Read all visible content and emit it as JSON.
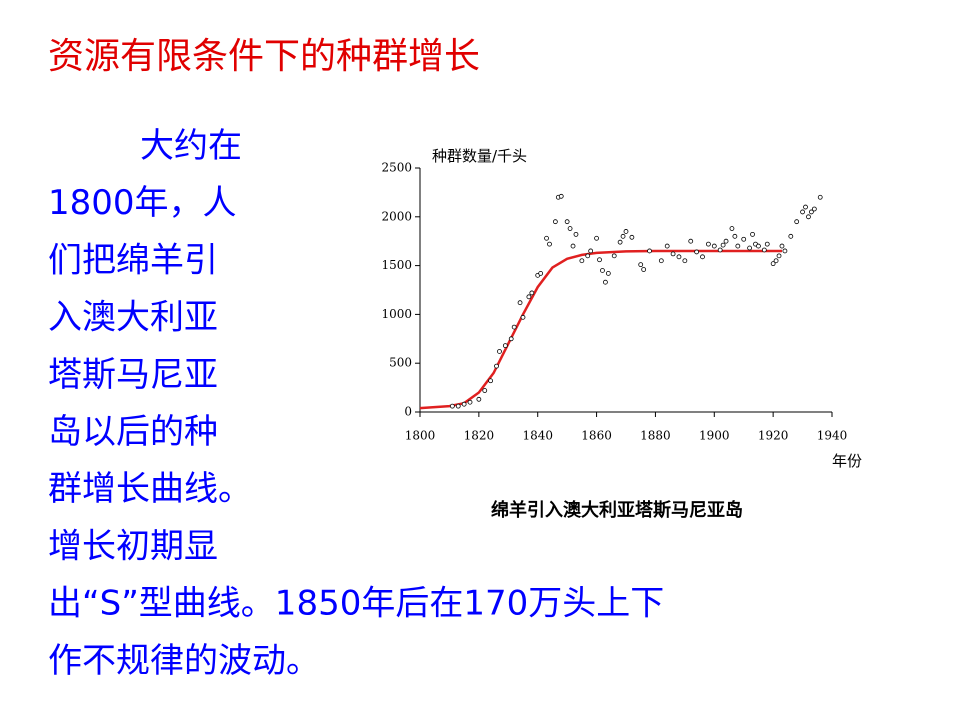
{
  "title": "资源有限条件下的种群增长",
  "body_lines": [
    "大约在",
    "1800年，人",
    "们把绵羊引",
    "入澳大利亚",
    "塔斯马尼亚",
    "岛以后的种",
    "群增长曲线。",
    "增长初期显",
    "出“S”型曲线。1850年后在170万头上下",
    "作不规律的波动。"
  ],
  "chart_data": {
    "type": "scatter",
    "y_label": "种群数量/千头",
    "x_label": "年份",
    "caption": "绵羊引入澳大利亚塔斯马尼亚岛",
    "xlim": [
      1800,
      1940
    ],
    "ylim": [
      0,
      2500
    ],
    "xticks": [
      1800,
      1820,
      1840,
      1860,
      1880,
      1900,
      1920,
      1940
    ],
    "yticks": [
      0,
      500,
      1000,
      1500,
      2000,
      2500
    ],
    "points": {
      "color": "#000000",
      "x": [
        1811,
        1813,
        1815,
        1817,
        1820,
        1822,
        1824,
        1826,
        1827,
        1829,
        1831,
        1832,
        1834,
        1835,
        1837,
        1838,
        1840,
        1841,
        1843,
        1844,
        1846,
        1847,
        1848,
        1850,
        1851,
        1852,
        1853,
        1855,
        1857,
        1858,
        1860,
        1861,
        1862,
        1863,
        1864,
        1866,
        1868,
        1869,
        1870,
        1872,
        1875,
        1876,
        1878,
        1882,
        1884,
        1886,
        1888,
        1890,
        1892,
        1894,
        1896,
        1898,
        1900,
        1902,
        1903,
        1904,
        1906,
        1907,
        1908,
        1910,
        1912,
        1913,
        1914,
        1915,
        1917,
        1918,
        1920,
        1921,
        1922,
        1923,
        1924,
        1926,
        1928,
        1930,
        1931,
        1932,
        1933,
        1934,
        1936
      ],
      "y": [
        60,
        60,
        80,
        100,
        130,
        220,
        320,
        470,
        620,
        680,
        750,
        870,
        1120,
        970,
        1180,
        1220,
        1400,
        1420,
        1780,
        1720,
        1950,
        2200,
        2210,
        1950,
        1880,
        1700,
        1820,
        1550,
        1600,
        1650,
        1780,
        1560,
        1450,
        1330,
        1420,
        1600,
        1740,
        1800,
        1850,
        1790,
        1510,
        1460,
        1650,
        1550,
        1700,
        1620,
        1590,
        1550,
        1750,
        1640,
        1590,
        1720,
        1700,
        1660,
        1710,
        1750,
        1880,
        1800,
        1700,
        1770,
        1680,
        1820,
        1720,
        1700,
        1660,
        1720,
        1520,
        1550,
        1600,
        1700,
        1650,
        1800,
        1950,
        2050,
        2100,
        2000,
        2050,
        2080,
        2200
      ]
    },
    "curve": {
      "color": "#e02020",
      "x": [
        1800,
        1805,
        1810,
        1815,
        1820,
        1825,
        1830,
        1835,
        1840,
        1845,
        1850,
        1855,
        1860,
        1870,
        1880,
        1900,
        1923
      ],
      "y": [
        40,
        50,
        60,
        90,
        200,
        400,
        700,
        1000,
        1280,
        1480,
        1570,
        1610,
        1630,
        1645,
        1650,
        1650,
        1650
      ]
    }
  }
}
